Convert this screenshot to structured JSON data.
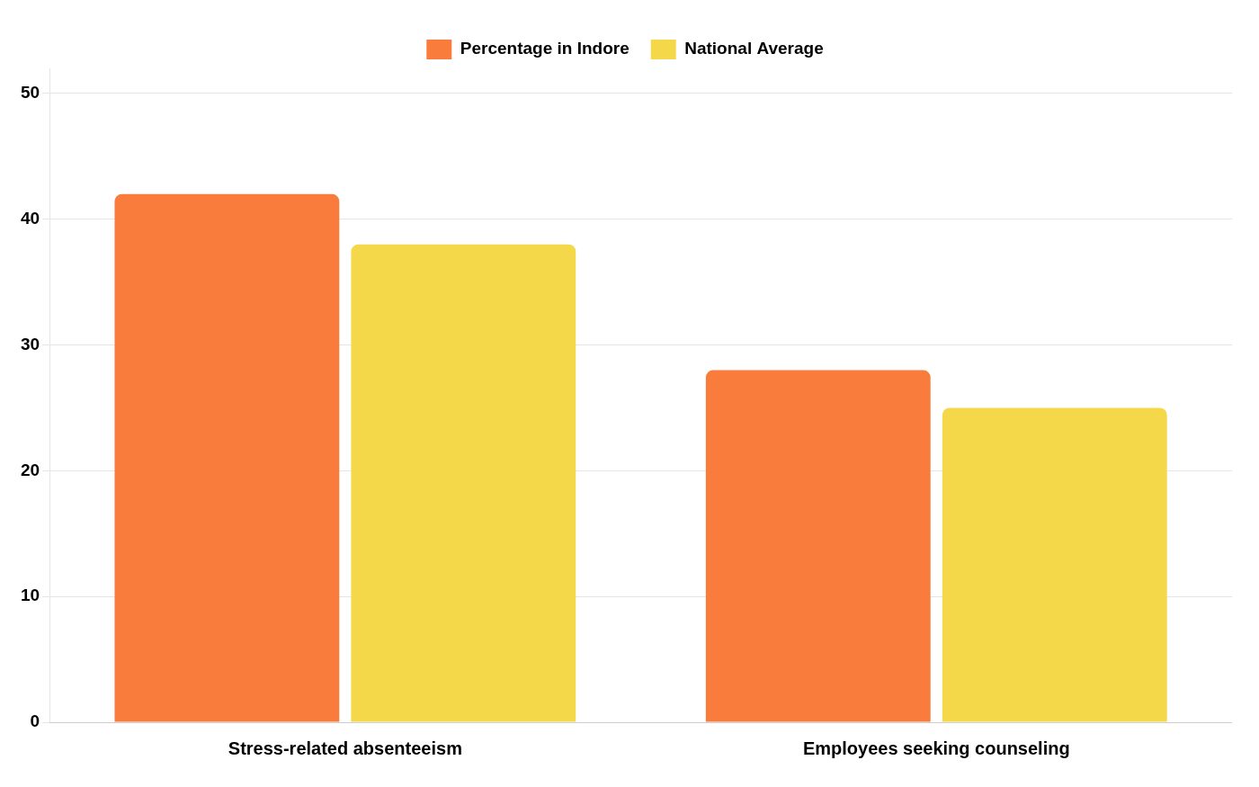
{
  "chart_data": {
    "type": "bar",
    "categories": [
      "Stress-related absenteeism",
      "Employees seeking counseling"
    ],
    "series": [
      {
        "name": "Percentage in Indore",
        "color": "#F97C3C",
        "values": [
          42,
          28
        ]
      },
      {
        "name": "National Average",
        "color": "#F5D84A",
        "values": [
          38,
          25
        ]
      }
    ],
    "ylim": [
      0,
      52
    ],
    "yticks": [
      0,
      10,
      20,
      30,
      40,
      50
    ],
    "grid": true,
    "legend": "top"
  }
}
